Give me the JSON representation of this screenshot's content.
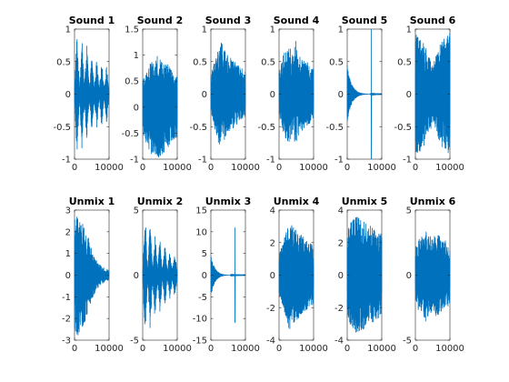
{
  "chart_data": [
    {
      "type": "line",
      "title": "Sound 1",
      "xlim": [
        0,
        10000
      ],
      "ylim": [
        -1,
        1
      ],
      "xticks": [
        0,
        10000
      ],
      "yticks": [
        -1,
        -0.5,
        0,
        0.5,
        1
      ],
      "ytick_labels": [
        "-1",
        "-0.5",
        "0",
        "0.5",
        "1"
      ],
      "series_color": "#0072BD",
      "waveform": "bursts",
      "envelope": [
        0.12,
        0.95,
        0.1,
        0.85,
        0.15,
        0.75,
        0.08,
        0.6,
        0.1,
        0.55,
        0.08,
        0.5,
        0.1,
        0.45,
        0.06
      ]
    },
    {
      "type": "line",
      "title": "Sound 2",
      "xlim": [
        0,
        10000
      ],
      "ylim": [
        -1,
        1.5
      ],
      "xticks": [
        0,
        10000
      ],
      "yticks": [
        -1,
        -0.5,
        0,
        0.5,
        1,
        1.5
      ],
      "ytick_labels": [
        "-1",
        "-0.5",
        "0",
        "0.5",
        "1",
        "1.5"
      ],
      "series_color": "#0072BD",
      "waveform": "dense",
      "envelope": [
        0.55,
        0.7,
        0.85,
        0.95,
        1.0,
        0.95,
        0.9,
        0.85,
        0.75,
        0.65,
        0.6
      ]
    },
    {
      "type": "line",
      "title": "Sound 3",
      "xlim": [
        0,
        10000
      ],
      "ylim": [
        -1,
        1
      ],
      "xticks": [
        0,
        10000
      ],
      "yticks": [
        -1,
        -0.5,
        0,
        0.5,
        1
      ],
      "ytick_labels": [
        "-1",
        "-0.5",
        "0",
        "0.5",
        "1"
      ],
      "series_color": "#0072BD",
      "waveform": "dense",
      "envelope": [
        0.3,
        0.5,
        0.75,
        0.8,
        0.7,
        0.6,
        0.55,
        0.5,
        0.45,
        0.4,
        0.35
      ]
    },
    {
      "type": "line",
      "title": "Sound 4",
      "xlim": [
        0,
        10000
      ],
      "ylim": [
        -1,
        1
      ],
      "xticks": [
        0,
        10000
      ],
      "yticks": [
        -1,
        -0.5,
        0,
        0.5,
        1
      ],
      "ytick_labels": [
        "-1",
        "-0.5",
        "0",
        "0.5",
        "1"
      ],
      "series_color": "#0072BD",
      "waveform": "dense",
      "envelope": [
        0.35,
        0.6,
        0.7,
        0.75,
        0.65,
        0.85,
        0.6,
        0.55,
        0.5,
        0.45,
        0.4
      ]
    },
    {
      "type": "line",
      "title": "Sound 5",
      "xlim": [
        0,
        10000
      ],
      "ylim": [
        -1,
        1
      ],
      "xticks": [
        0,
        10000
      ],
      "yticks": [
        -1,
        -0.5,
        0,
        0.5,
        1
      ],
      "ytick_labels": [
        "-1",
        "-0.5",
        "0",
        "0.5",
        "1"
      ],
      "series_color": "#0072BD",
      "waveform": "decay_spike",
      "decay_amp": 0.45,
      "decay_rate": 0.0008,
      "spike_x": 7000,
      "spike_amp": 1.0
    },
    {
      "type": "line",
      "title": "Sound 6",
      "xlim": [
        0,
        10000
      ],
      "ylim": [
        -1,
        1
      ],
      "xticks": [
        0,
        10000
      ],
      "yticks": [
        -1,
        -0.5,
        0,
        0.5,
        1
      ],
      "ytick_labels": [
        "-1",
        "-0.5",
        "0",
        "0.5",
        "1"
      ],
      "series_color": "#0072BD",
      "waveform": "dense",
      "envelope": [
        0.95,
        0.9,
        0.85,
        0.75,
        0.6,
        0.5,
        0.6,
        0.75,
        0.85,
        0.9,
        0.95
      ]
    },
    {
      "type": "line",
      "title": "Unmix 1",
      "xlim": [
        0,
        10000
      ],
      "ylim": [
        -3,
        3
      ],
      "xticks": [
        0,
        10000
      ],
      "yticks": [
        -3,
        -2,
        -1,
        0,
        1,
        2,
        3
      ],
      "ytick_labels": [
        "-3",
        "-2",
        "-1",
        "0",
        "1",
        "2",
        "3"
      ],
      "series_color": "#0072BD",
      "waveform": "dense",
      "envelope": [
        2.6,
        2.8,
        2.5,
        2.2,
        1.8,
        1.2,
        0.8,
        0.55,
        0.4,
        0.3,
        0.25
      ]
    },
    {
      "type": "line",
      "title": "Unmix 2",
      "xlim": [
        0,
        10000
      ],
      "ylim": [
        -5,
        5
      ],
      "xticks": [
        0,
        10000
      ],
      "yticks": [
        -5,
        0,
        5
      ],
      "ytick_labels": [
        "-5",
        "0",
        "5"
      ],
      "series_color": "#0072BD",
      "waveform": "bursts",
      "envelope": [
        0.5,
        4.8,
        0.4,
        4.3,
        0.5,
        3.5,
        0.4,
        3.0,
        0.4,
        2.5,
        0.3,
        2.0,
        0.35,
        1.8,
        0.3
      ]
    },
    {
      "type": "line",
      "title": "Unmix 3",
      "xlim": [
        0,
        10000
      ],
      "ylim": [
        -15,
        15
      ],
      "xticks": [
        0,
        10000
      ],
      "yticks": [
        -15,
        -10,
        -5,
        0,
        5,
        10,
        15
      ],
      "ytick_labels": [
        "-15",
        "-10",
        "-5",
        "0",
        "5",
        "10",
        "15"
      ],
      "series_color": "#0072BD",
      "waveform": "decay_spike",
      "decay_amp": 5.0,
      "decay_rate": 0.0009,
      "spike_x": 7000,
      "spike_amp": 11.0
    },
    {
      "type": "line",
      "title": "Unmix 4",
      "xlim": [
        0,
        10000
      ],
      "ylim": [
        -4,
        4
      ],
      "xticks": [
        0,
        10000
      ],
      "yticks": [
        -4,
        -2,
        0,
        2,
        4
      ],
      "ytick_labels": [
        "-4",
        "-2",
        "0",
        "2",
        "4"
      ],
      "series_color": "#0072BD",
      "waveform": "dense",
      "envelope": [
        1.3,
        2.0,
        2.6,
        3.4,
        3.0,
        2.8,
        2.6,
        2.4,
        2.2,
        2.0,
        1.8
      ]
    },
    {
      "type": "line",
      "title": "Unmix 5",
      "xlim": [
        0,
        10000
      ],
      "ylim": [
        -4,
        4
      ],
      "xticks": [
        0,
        10000
      ],
      "yticks": [
        -4,
        -2,
        0,
        2,
        4
      ],
      "ytick_labels": [
        "-4",
        "-2",
        "0",
        "2",
        "4"
      ],
      "series_color": "#0072BD",
      "waveform": "dense",
      "envelope": [
        2.6,
        3.4,
        3.6,
        3.6,
        3.4,
        3.3,
        3.2,
        3.0,
        2.8,
        2.7,
        2.6
      ]
    },
    {
      "type": "line",
      "title": "Unmix 6",
      "xlim": [
        0,
        10000
      ],
      "ylim": [
        -5,
        5
      ],
      "xticks": [
        0,
        10000
      ],
      "yticks": [
        -5,
        0,
        5
      ],
      "ytick_labels": [
        "-5",
        "0",
        "5"
      ],
      "series_color": "#0072BD",
      "waveform": "dense",
      "envelope": [
        2.2,
        2.8,
        3.0,
        3.6,
        3.2,
        2.8,
        3.3,
        3.0,
        2.8,
        2.6,
        2.4
      ]
    }
  ]
}
